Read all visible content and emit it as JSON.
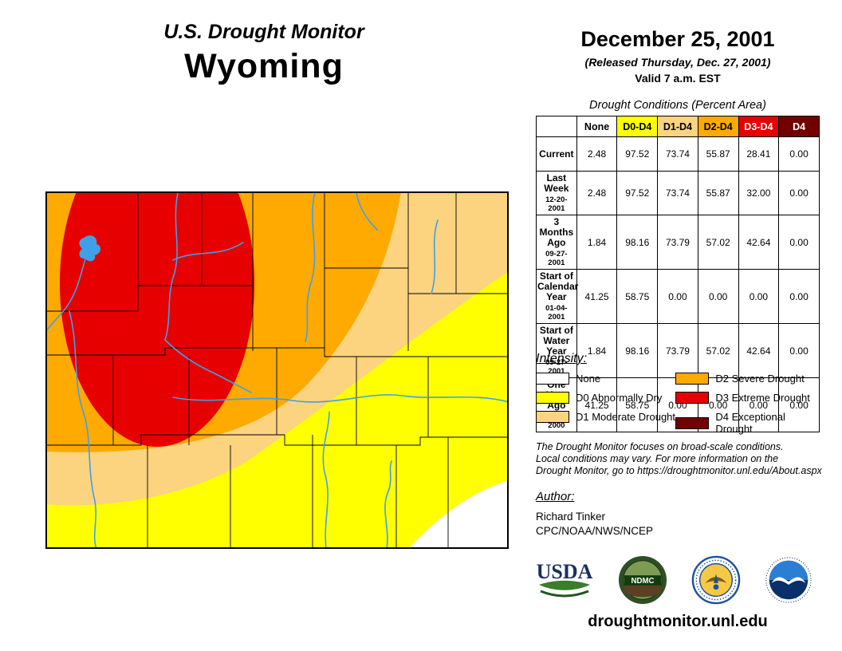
{
  "header": {
    "title": "U.S. Drought Monitor",
    "state": "Wyoming",
    "date": "December 25, 2001",
    "released": "(Released Thursday, Dec. 27, 2001)",
    "valid": "Valid 7 a.m. EST"
  },
  "table": {
    "title": "Drought Conditions (Percent Area)",
    "columns": [
      {
        "label": "None",
        "bg": "#FFFFFF",
        "fg": "#000000"
      },
      {
        "label": "D0-D4",
        "bg": "#FFFF00",
        "fg": "#000000"
      },
      {
        "label": "D1-D4",
        "bg": "#FCD37F",
        "fg": "#000000"
      },
      {
        "label": "D2-D4",
        "bg": "#FFAA00",
        "fg": "#000000"
      },
      {
        "label": "D3-D4",
        "bg": "#E60000",
        "fg": "#FFFFFF"
      },
      {
        "label": "D4",
        "bg": "#730000",
        "fg": "#FFFFFF"
      }
    ],
    "rows": [
      {
        "label": "Current",
        "date": "",
        "values": [
          "2.48",
          "97.52",
          "73.74",
          "55.87",
          "28.41",
          "0.00"
        ]
      },
      {
        "label": "Last Week",
        "date": "12-20-2001",
        "values": [
          "2.48",
          "97.52",
          "73.74",
          "55.87",
          "32.00",
          "0.00"
        ]
      },
      {
        "label": "3 Months Ago",
        "date": "09-27-2001",
        "values": [
          "1.84",
          "98.16",
          "73.79",
          "57.02",
          "42.64",
          "0.00"
        ]
      },
      {
        "label": "Start of Calendar Year",
        "date": "01-04-2001",
        "values": [
          "41.25",
          "58.75",
          "0.00",
          "0.00",
          "0.00",
          "0.00"
        ]
      },
      {
        "label": "Start of Water Year",
        "date": "09-27-2001",
        "values": [
          "1.84",
          "98.16",
          "73.79",
          "57.02",
          "42.64",
          "0.00"
        ]
      },
      {
        "label": "One Year Ago",
        "date": "12-28-2000",
        "values": [
          "41.25",
          "58.75",
          "0.00",
          "0.00",
          "0.00",
          "0.00"
        ]
      }
    ]
  },
  "legend": {
    "title": "Intensity:",
    "items": [
      {
        "label": "None",
        "color": "#FFFFFF"
      },
      {
        "label": "D0 Abnormally Dry",
        "color": "#FFFF00"
      },
      {
        "label": "D1 Moderate Drought",
        "color": "#FCD37F"
      },
      {
        "label": "D2 Severe Drought",
        "color": "#FFAA00"
      },
      {
        "label": "D3 Extreme Drought",
        "color": "#E60000"
      },
      {
        "label": "D4 Exceptional Drought",
        "color": "#730000"
      }
    ]
  },
  "disclaimer": {
    "lines": [
      "The Drought Monitor focuses on broad-scale conditions.",
      "Local conditions may vary. For more information on the",
      "Drought Monitor, go to https://droughtmonitor.unl.edu/About.aspx"
    ]
  },
  "author": {
    "heading": "Author:",
    "name": "Richard Tinker",
    "org": "CPC/NOAA/NWS/NCEP"
  },
  "logos": {
    "usda_label": "USDA",
    "ndmc_label": "NDMC",
    "noaa_label": "NOAA"
  },
  "footer": {
    "url": "droughtmonitor.unl.edu"
  },
  "map": {
    "region": "Wyoming",
    "colors": {
      "none": "#FFFFFF",
      "d0": "#FFFF00",
      "d1": "#FCD37F",
      "d2": "#FFAA00",
      "d3": "#E60000",
      "d4": "#730000",
      "water": "#3FA0E8",
      "border": "#000000"
    }
  }
}
